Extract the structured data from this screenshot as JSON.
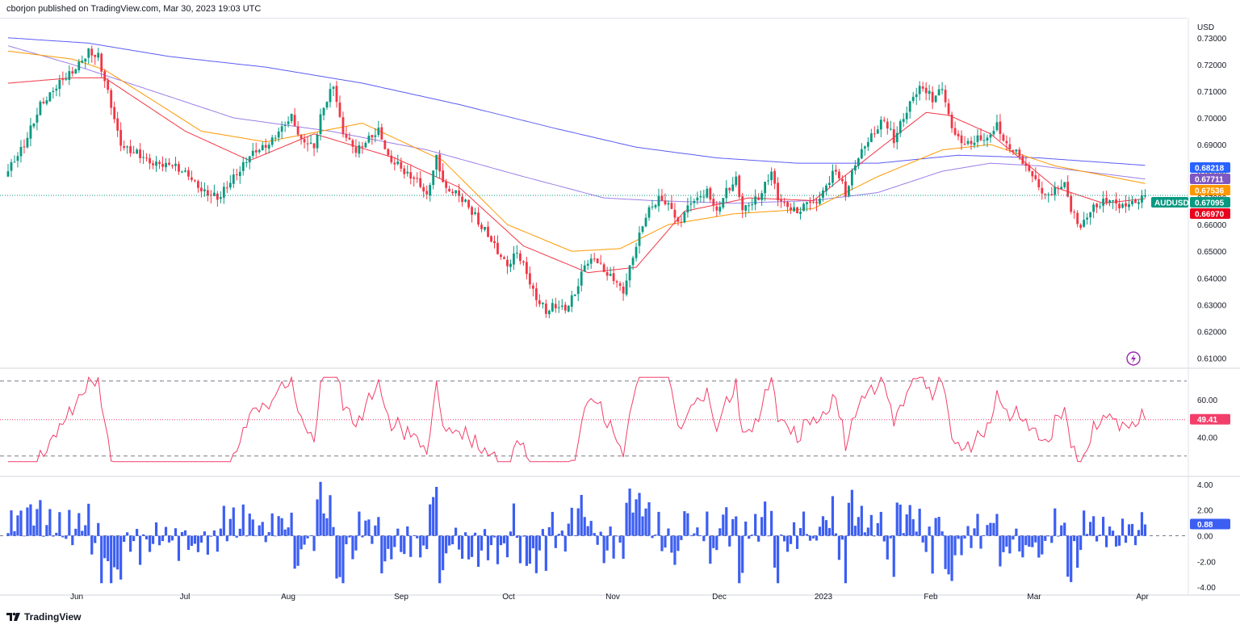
{
  "header": {
    "published": "cborjon published on TradingView.com, Mar 30, 2023 19:03 UTC"
  },
  "footer": {
    "brand": "TradingView",
    "logo": "tradingview-logo"
  },
  "colors": {
    "up": "#089981",
    "down": "#f23645",
    "ema_fast": "#f23645",
    "ema_mid": "#ff9800",
    "sma_mid": "#9b7ee6",
    "sma_long": "#5b5bf5",
    "rsi": "#f23f6a",
    "hist": "#3c5ef2",
    "price_line": "#089981"
  },
  "chart_data": {
    "type": "line",
    "symbol": "AUDUSD",
    "currency": "USD",
    "price_axis": {
      "ticks": [
        "0.73000",
        "0.72000",
        "0.71000",
        "0.70000",
        "0.69000",
        "0.68000",
        "0.67000",
        "0.66000",
        "0.65000",
        "0.64000",
        "0.63000",
        "0.62000",
        "0.61000"
      ],
      "ylim": [
        0.6065,
        0.7375
      ]
    },
    "x_labels": [
      "Jun",
      "Jul",
      "Aug",
      "Sep",
      "Oct",
      "Nov",
      "Dec",
      "2023",
      "Feb",
      "Mar",
      "Apr"
    ],
    "last_values": {
      "sma_long": "0.68218",
      "sma_mid": "0.67711",
      "ema_mid": "0.67536",
      "price": "0.67095",
      "ema_fast": "0.66970",
      "sma_long_bg": "#2962ff",
      "sma_mid_bg": "#7e57c2",
      "ema_mid_bg": "#ff9800",
      "price_bg": "#089981",
      "ema_fast_bg": "#e8001c"
    },
    "close_anchors": [
      [
        0,
        0.68
      ],
      [
        5,
        0.69
      ],
      [
        10,
        0.705
      ],
      [
        15,
        0.712
      ],
      [
        20,
        0.718
      ],
      [
        25,
        0.725
      ],
      [
        28,
        0.723
      ],
      [
        31,
        0.71
      ],
      [
        35,
        0.69
      ],
      [
        40,
        0.687
      ],
      [
        45,
        0.683
      ],
      [
        50,
        0.683
      ],
      [
        55,
        0.68
      ],
      [
        60,
        0.673
      ],
      [
        65,
        0.67
      ],
      [
        70,
        0.678
      ],
      [
        75,
        0.686
      ],
      [
        80,
        0.69
      ],
      [
        84,
        0.695
      ],
      [
        88,
        0.7
      ],
      [
        91,
        0.692
      ],
      [
        95,
        0.69
      ],
      [
        98,
        0.705
      ],
      [
        101,
        0.712
      ],
      [
        104,
        0.694
      ],
      [
        108,
        0.688
      ],
      [
        112,
        0.692
      ],
      [
        115,
        0.695
      ],
      [
        118,
        0.686
      ],
      [
        122,
        0.681
      ],
      [
        126,
        0.678
      ],
      [
        130,
        0.671
      ],
      [
        133,
        0.685
      ],
      [
        136,
        0.673
      ],
      [
        140,
        0.671
      ],
      [
        144,
        0.665
      ],
      [
        148,
        0.658
      ],
      [
        151,
        0.652
      ],
      [
        155,
        0.645
      ],
      [
        158,
        0.65
      ],
      [
        161,
        0.642
      ],
      [
        164,
        0.632
      ],
      [
        167,
        0.628
      ],
      [
        170,
        0.63
      ],
      [
        173,
        0.628
      ],
      [
        176,
        0.635
      ],
      [
        179,
        0.645
      ],
      [
        182,
        0.648
      ],
      [
        185,
        0.643
      ],
      [
        188,
        0.64
      ],
      [
        191,
        0.635
      ],
      [
        194,
        0.648
      ],
      [
        197,
        0.66
      ],
      [
        200,
        0.668
      ],
      [
        203,
        0.67
      ],
      [
        206,
        0.667
      ],
      [
        208,
        0.66
      ],
      [
        211,
        0.667
      ],
      [
        214,
        0.67
      ],
      [
        217,
        0.672
      ],
      [
        220,
        0.665
      ],
      [
        223,
        0.673
      ],
      [
        226,
        0.677
      ],
      [
        228,
        0.666
      ],
      [
        231,
        0.668
      ],
      [
        234,
        0.672
      ],
      [
        237,
        0.68
      ],
      [
        239,
        0.67
      ],
      [
        242,
        0.667
      ],
      [
        245,
        0.665
      ],
      [
        248,
        0.669
      ],
      [
        251,
        0.668
      ],
      [
        254,
        0.675
      ],
      [
        257,
        0.681
      ],
      [
        260,
        0.672
      ],
      [
        263,
        0.683
      ],
      [
        266,
        0.69
      ],
      [
        269,
        0.695
      ],
      [
        272,
        0.7
      ],
      [
        275,
        0.692
      ],
      [
        278,
        0.701
      ],
      [
        281,
        0.708
      ],
      [
        284,
        0.712
      ],
      [
        287,
        0.707
      ],
      [
        290,
        0.712
      ],
      [
        292,
        0.7
      ],
      [
        295,
        0.692
      ],
      [
        298,
        0.69
      ],
      [
        301,
        0.693
      ],
      [
        304,
        0.692
      ],
      [
        307,
        0.698
      ],
      [
        310,
        0.69
      ],
      [
        313,
        0.688
      ],
      [
        316,
        0.682
      ],
      [
        319,
        0.677
      ],
      [
        322,
        0.671
      ],
      [
        325,
        0.673
      ],
      [
        328,
        0.675
      ],
      [
        330,
        0.666
      ],
      [
        333,
        0.659
      ],
      [
        336,
        0.666
      ],
      [
        339,
        0.668
      ],
      [
        342,
        0.67
      ],
      [
        345,
        0.667
      ],
      [
        348,
        0.668
      ],
      [
        350,
        0.669
      ],
      [
        353,
        0.67
      ]
    ],
    "ma_anchors": {
      "ema_fast": [
        [
          0,
          0.713
        ],
        [
          20,
          0.715
        ],
        [
          30,
          0.715
        ],
        [
          55,
          0.695
        ],
        [
          75,
          0.684
        ],
        [
          95,
          0.694
        ],
        [
          120,
          0.685
        ],
        [
          140,
          0.674
        ],
        [
          160,
          0.652
        ],
        [
          180,
          0.642
        ],
        [
          195,
          0.644
        ],
        [
          210,
          0.665
        ],
        [
          230,
          0.67
        ],
        [
          250,
          0.669
        ],
        [
          270,
          0.688
        ],
        [
          285,
          0.702
        ],
        [
          292,
          0.701
        ],
        [
          305,
          0.694
        ],
        [
          325,
          0.674
        ],
        [
          340,
          0.668
        ],
        [
          353,
          0.6697
        ]
      ],
      "ema_mid": [
        [
          0,
          0.725
        ],
        [
          20,
          0.722
        ],
        [
          30,
          0.718
        ],
        [
          60,
          0.695
        ],
        [
          80,
          0.691
        ],
        [
          110,
          0.698
        ],
        [
          135,
          0.684
        ],
        [
          155,
          0.66
        ],
        [
          175,
          0.65
        ],
        [
          190,
          0.651
        ],
        [
          205,
          0.66
        ],
        [
          225,
          0.664
        ],
        [
          250,
          0.666
        ],
        [
          270,
          0.678
        ],
        [
          290,
          0.688
        ],
        [
          305,
          0.69
        ],
        [
          325,
          0.682
        ],
        [
          353,
          0.6754
        ]
      ],
      "sma_mid": [
        [
          0,
          0.727
        ],
        [
          20,
          0.72
        ],
        [
          40,
          0.712
        ],
        [
          70,
          0.7
        ],
        [
          100,
          0.695
        ],
        [
          130,
          0.688
        ],
        [
          160,
          0.678
        ],
        [
          185,
          0.67
        ],
        [
          200,
          0.669
        ],
        [
          225,
          0.668
        ],
        [
          250,
          0.669
        ],
        [
          270,
          0.672
        ],
        [
          290,
          0.68
        ],
        [
          305,
          0.683
        ],
        [
          320,
          0.682
        ],
        [
          340,
          0.679
        ],
        [
          353,
          0.6771
        ]
      ],
      "sma_long": [
        [
          0,
          0.73
        ],
        [
          25,
          0.728
        ],
        [
          50,
          0.723
        ],
        [
          80,
          0.719
        ],
        [
          110,
          0.713
        ],
        [
          140,
          0.705
        ],
        [
          170,
          0.696
        ],
        [
          195,
          0.689
        ],
        [
          220,
          0.685
        ],
        [
          245,
          0.683
        ],
        [
          270,
          0.683
        ],
        [
          295,
          0.686
        ],
        [
          320,
          0.685
        ],
        [
          353,
          0.6822
        ]
      ]
    },
    "rsi": {
      "ticks": [
        "60.00",
        "40.00"
      ],
      "ylim": [
        20,
        76
      ],
      "upper_band": 70,
      "lower_band": 30,
      "last": "49.41",
      "last_bg": "#f23f6a"
    },
    "oscillator": {
      "ticks": [
        "4.00",
        "2.00",
        "0.00",
        "-2.00",
        "-4.00"
      ],
      "ylim": [
        -4.5,
        4.5
      ],
      "last": "0.88",
      "last_bg": "#3c5ef2"
    }
  }
}
